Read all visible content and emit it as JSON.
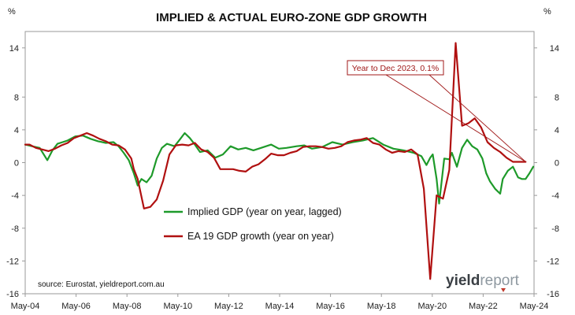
{
  "chart_data": {
    "type": "line",
    "title": "IMPLIED & ACTUAL EURO-ZONE GDP GROWTH",
    "y_unit_left": "%",
    "y_unit_right": "%",
    "ylim": [
      -16,
      16
    ],
    "y_ticks": [
      14,
      8,
      4,
      0,
      -4,
      -8,
      -12,
      -16
    ],
    "y_tick_labels": [
      "14",
      "8",
      "4",
      "0",
      "-4",
      "-8",
      "-12",
      "-16"
    ],
    "x_ticks": [
      "May-04",
      "May-06",
      "May-08",
      "May-10",
      "May-12",
      "May-14",
      "May-16",
      "May-18",
      "May-20",
      "May-22",
      "May-24"
    ],
    "x_tick_years": [
      2004.33,
      2006.33,
      2008.33,
      2010.33,
      2012.33,
      2014.33,
      2016.33,
      2018.33,
      2020.33,
      2022.33,
      2024.33
    ],
    "xlim": [
      2004.33,
      2024.33
    ],
    "grid": false,
    "legend_position": "lower-left",
    "series": [
      {
        "name": "Implied GDP (year on year, lagged)",
        "color": "#1e9a2a",
        "x": [
          2004.33,
          2004.6,
          2004.9,
          2005.2,
          2005.4,
          2005.6,
          2005.8,
          2006.0,
          2006.3,
          2006.6,
          2006.9,
          2007.2,
          2007.5,
          2007.8,
          2008.0,
          2008.2,
          2008.4,
          2008.6,
          2008.75,
          2008.9,
          2009.1,
          2009.3,
          2009.5,
          2009.7,
          2009.9,
          2010.2,
          2010.4,
          2010.6,
          2010.8,
          2011.0,
          2011.2,
          2011.5,
          2011.8,
          2012.1,
          2012.4,
          2012.7,
          2013.0,
          2013.3,
          2013.6,
          2014.0,
          2014.3,
          2014.6,
          2015.0,
          2015.3,
          2015.6,
          2016.0,
          2016.4,
          2016.8,
          2017.2,
          2017.6,
          2018.0,
          2018.4,
          2018.8,
          2019.2,
          2019.6,
          2019.9,
          2020.1,
          2020.25,
          2020.35,
          2020.5,
          2020.6,
          2020.8,
          2021.0,
          2021.1,
          2021.3,
          2021.5,
          2021.7,
          2021.9,
          2022.1,
          2022.3,
          2022.45,
          2022.6,
          2022.8,
          2023.0,
          2023.1,
          2023.3,
          2023.5,
          2023.7,
          2023.85,
          2024.0,
          2024.15,
          2024.3
        ],
        "y": [
          2.2,
          2.0,
          1.8,
          0.3,
          1.5,
          2.3,
          2.5,
          2.7,
          3.2,
          3.3,
          2.9,
          2.6,
          2.4,
          2.5,
          2.0,
          1.2,
          0.3,
          -1.3,
          -2.8,
          -2.0,
          -2.4,
          -1.6,
          0.5,
          1.8,
          2.3,
          2.0,
          2.8,
          3.6,
          3.0,
          2.2,
          1.3,
          1.5,
          0.6,
          1.0,
          2.0,
          1.6,
          1.8,
          1.5,
          1.8,
          2.2,
          1.7,
          1.8,
          2.0,
          2.1,
          1.7,
          1.9,
          2.5,
          2.2,
          2.5,
          2.7,
          3.0,
          2.2,
          1.7,
          1.5,
          1.2,
          0.8,
          -0.3,
          0.6,
          1.0,
          -2.0,
          -5.0,
          0.5,
          0.4,
          1.2,
          -0.5,
          1.8,
          2.8,
          2.0,
          1.6,
          0.5,
          -1.3,
          -2.3,
          -3.2,
          -3.8,
          -2.0,
          -1.0,
          -0.5,
          -1.8,
          -2.0,
          -2.0,
          -1.3,
          -0.5
        ]
      },
      {
        "name": "EA 19 GDP growth (year on year)",
        "color": "#b01010",
        "x": [
          2004.33,
          2004.5,
          2004.75,
          2005.0,
          2005.25,
          2005.5,
          2005.75,
          2006.0,
          2006.25,
          2006.5,
          2006.75,
          2007.0,
          2007.25,
          2007.5,
          2007.75,
          2008.0,
          2008.25,
          2008.5,
          2008.6,
          2008.75,
          2009.0,
          2009.25,
          2009.5,
          2009.75,
          2010.0,
          2010.25,
          2010.5,
          2010.75,
          2011.0,
          2011.25,
          2011.5,
          2011.75,
          2012.0,
          2012.25,
          2012.5,
          2012.75,
          2013.0,
          2013.25,
          2013.5,
          2013.75,
          2014.0,
          2014.25,
          2014.5,
          2014.75,
          2015.0,
          2015.25,
          2015.5,
          2015.75,
          2016.0,
          2016.25,
          2016.5,
          2016.75,
          2017.0,
          2017.25,
          2017.5,
          2017.75,
          2018.0,
          2018.25,
          2018.5,
          2018.75,
          2019.0,
          2019.25,
          2019.5,
          2019.75,
          2020.0,
          2020.25,
          2020.5,
          2020.75,
          2021.0,
          2021.25,
          2021.5,
          2021.75,
          2022.0,
          2022.25,
          2022.5,
          2022.75,
          2023.0,
          2023.25,
          2023.5,
          2023.75,
          2024.0
        ],
        "y": [
          2.2,
          2.2,
          1.8,
          1.6,
          1.4,
          1.7,
          2.1,
          2.4,
          3.0,
          3.3,
          3.6,
          3.3,
          2.9,
          2.6,
          2.2,
          2.1,
          1.6,
          0.5,
          -0.8,
          -2.0,
          -5.6,
          -5.4,
          -4.5,
          -2.2,
          1.0,
          2.1,
          2.2,
          2.1,
          2.4,
          1.6,
          1.3,
          0.6,
          -0.8,
          -0.8,
          -0.8,
          -1.0,
          -1.1,
          -0.5,
          -0.2,
          0.4,
          1.1,
          0.9,
          0.9,
          1.2,
          1.4,
          1.9,
          2.0,
          2.0,
          1.9,
          1.7,
          1.8,
          2.0,
          2.5,
          2.7,
          2.8,
          3.0,
          2.4,
          2.2,
          1.6,
          1.2,
          1.4,
          1.3,
          1.6,
          1.0,
          -3.2,
          -14.2,
          -4.0,
          -4.4,
          -0.9,
          14.6,
          4.5,
          4.8,
          5.4,
          4.3,
          2.5,
          1.8,
          1.3,
          0.6,
          0.1,
          0.1,
          0.1
        ]
      }
    ],
    "annotation": "Year to Dec 2023, 0.1%",
    "source": "source: Eurostat, yieldreport.com.au",
    "logo": {
      "part1": "yield",
      "part2": "report"
    }
  }
}
